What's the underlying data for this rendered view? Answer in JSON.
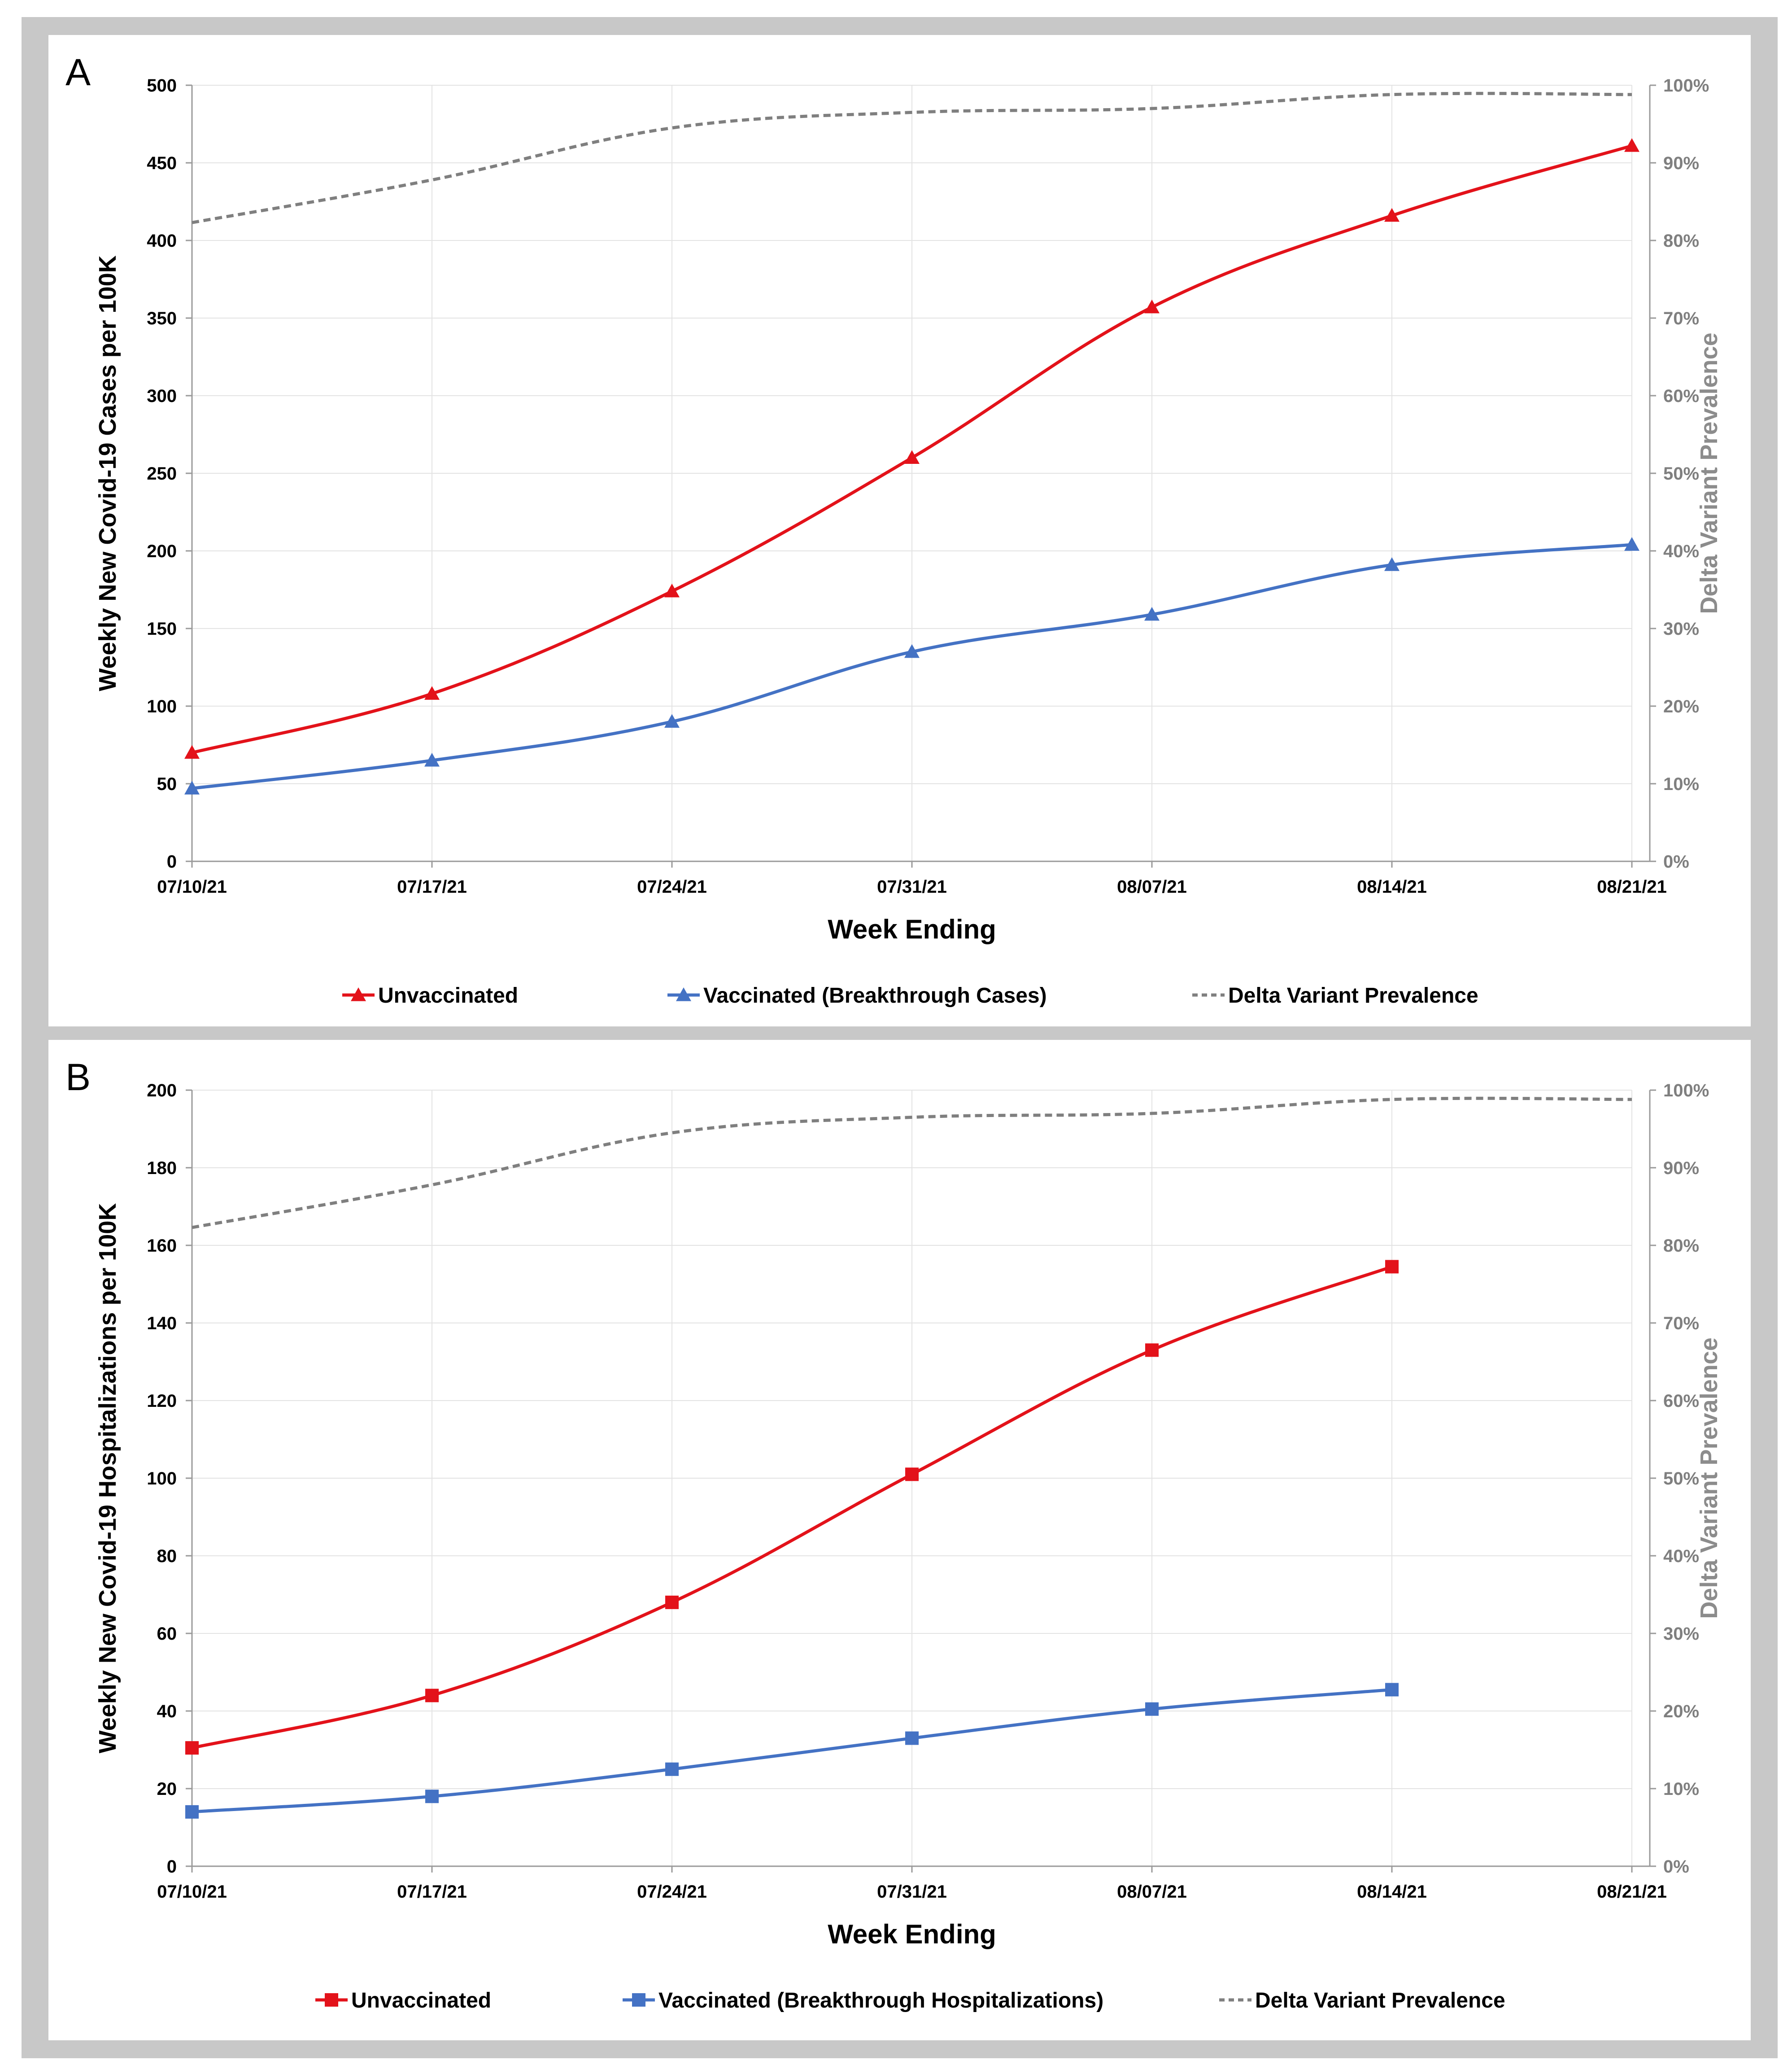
{
  "chart_data": [
    {
      "panel_label": "A",
      "type": "line",
      "categories": [
        "07/10/21",
        "07/17/21",
        "07/24/21",
        "07/31/21",
        "08/07/21",
        "08/14/21",
        "08/21/21"
      ],
      "xlabel": "Week Ending",
      "ylabel": "Weekly New Covid-19 Cases per 100K",
      "ylabel_right": "Delta Variant Prevalence",
      "ylim": [
        0,
        500
      ],
      "yticks": [
        0,
        50,
        100,
        150,
        200,
        250,
        300,
        350,
        400,
        450,
        500
      ],
      "ylim_right": [
        0,
        100
      ],
      "yticks_right": [
        "0%",
        "10%",
        "20%",
        "30%",
        "40%",
        "50%",
        "60%",
        "70%",
        "80%",
        "90%",
        "100%"
      ],
      "grid": true,
      "legend_position": "bottom",
      "series": [
        {
          "name": "Unvaccinated",
          "axis": "left",
          "color": "#e3121a",
          "marker": "triangle",
          "dashed": false,
          "values": [
            70,
            108,
            174,
            260,
            357,
            416,
            461
          ]
        },
        {
          "name": "Vaccinated (Breakthrough Cases)",
          "axis": "left",
          "color": "#4472c4",
          "marker": "triangle",
          "dashed": false,
          "values": [
            47,
            65,
            90,
            135,
            159,
            191,
            204
          ]
        },
        {
          "name": "Delta Variant Prevalence",
          "axis": "right",
          "color": "#7f7f7f",
          "marker": "none",
          "dashed": true,
          "values": [
            82.3,
            87.8,
            94.5,
            96.5,
            97.0,
            98.8,
            98.8
          ]
        }
      ]
    },
    {
      "panel_label": "B",
      "type": "line",
      "categories": [
        "07/10/21",
        "07/17/21",
        "07/24/21",
        "07/31/21",
        "08/07/21",
        "08/14/21",
        "08/21/21"
      ],
      "xlabel": "Week Ending",
      "ylabel": "Weekly New Covid-19 Hospitalizations per 100K",
      "ylabel_right": "Delta Variant Prevalence",
      "ylim": [
        0,
        200
      ],
      "yticks": [
        0,
        20,
        40,
        60,
        80,
        100,
        120,
        140,
        160,
        180,
        200
      ],
      "ylim_right": [
        0,
        100
      ],
      "yticks_right": [
        "0%",
        "10%",
        "20%",
        "30%",
        "40%",
        "50%",
        "60%",
        "70%",
        "80%",
        "90%",
        "100%"
      ],
      "grid": true,
      "legend_position": "bottom",
      "series": [
        {
          "name": "Unvaccinated",
          "axis": "left",
          "color": "#e3121a",
          "marker": "square",
          "dashed": false,
          "values": [
            30.5,
            44,
            68,
            101,
            133,
            154.5,
            null
          ]
        },
        {
          "name": "Vaccinated (Breakthrough Hospitalizations)",
          "axis": "left",
          "color": "#4472c4",
          "marker": "square",
          "dashed": false,
          "values": [
            14,
            18,
            25,
            33,
            40.5,
            45.5,
            null
          ]
        },
        {
          "name": "Delta Variant Prevalence",
          "axis": "right",
          "color": "#7f7f7f",
          "marker": "none",
          "dashed": true,
          "values": [
            82.3,
            87.8,
            94.5,
            96.5,
            97.0,
            98.8,
            98.8
          ]
        }
      ]
    }
  ]
}
